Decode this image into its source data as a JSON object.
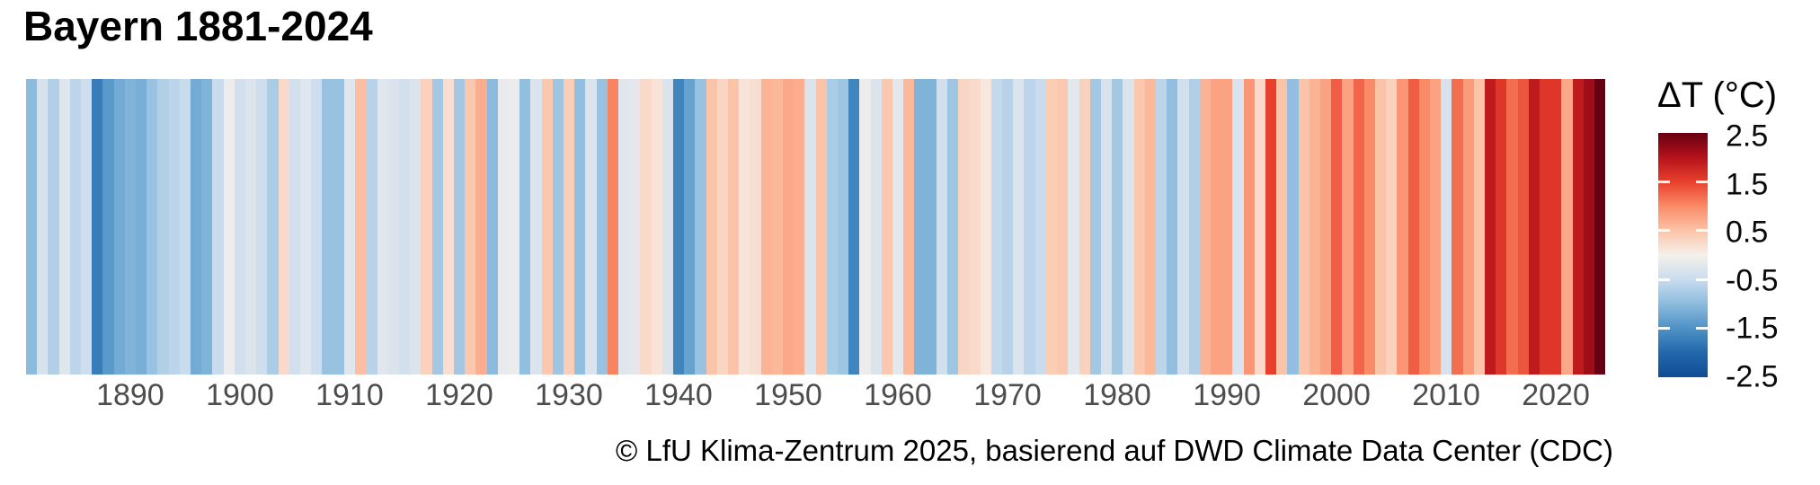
{
  "page": {
    "background": "#ffffff"
  },
  "header": {
    "title": "Bayern 1881-2024"
  },
  "footer": {
    "credit": "© LfU Klima-Zentrum 2025, basierend auf DWD Climate Data Center (CDC)"
  },
  "legend": {
    "title": "ΔT (°C)",
    "tick_labels": [
      "2.5",
      "1.5",
      "0.5",
      "-0.5",
      "-1.5",
      "-2.5"
    ],
    "interior_tick_values": [
      1.5,
      0.5,
      -0.5,
      -1.5
    ],
    "max": 2.5,
    "min": -2.5
  },
  "chart_data": {
    "type": "heatmap",
    "subtype": "warming-stripes",
    "title": "Bayern 1881-2024",
    "region": "Bayern",
    "x_start_year": 1881,
    "x_end_year": 2024,
    "x_tick_years": [
      1890,
      1900,
      1910,
      1920,
      1930,
      1940,
      1950,
      1960,
      1970,
      1980,
      1990,
      2000,
      2010,
      2020
    ],
    "value_label": "ΔT (°C)",
    "unit": "°C",
    "value_range": [
      -2.5,
      2.5
    ],
    "values": [
      -1.0,
      -0.35,
      -0.7,
      -0.25,
      -0.6,
      -0.45,
      -1.75,
      -1.4,
      -1.2,
      -1.1,
      -1.15,
      -0.9,
      -0.7,
      -0.6,
      -0.5,
      -1.2,
      -1.1,
      -0.5,
      -0.1,
      -0.4,
      -0.3,
      -0.45,
      -0.75,
      0.25,
      -0.4,
      -0.25,
      -0.45,
      -0.9,
      -0.9,
      -0.25,
      0.55,
      -0.65,
      -0.25,
      -0.3,
      -0.4,
      -0.3,
      0.35,
      -0.8,
      0.2,
      -0.8,
      0.45,
      0.7,
      -1.0,
      -0.15,
      -0.1,
      -0.95,
      -0.3,
      0.45,
      -0.85,
      0.4,
      -0.95,
      -0.3,
      -0.9,
      1.05,
      -0.25,
      -0.2,
      0.25,
      0.15,
      -0.3,
      -1.65,
      -1.3,
      -0.9,
      0.5,
      0.3,
      0.5,
      0.15,
      0.2,
      0.65,
      0.6,
      0.75,
      0.7,
      -0.3,
      0.5,
      -0.75,
      -0.85,
      -1.65,
      -0.1,
      -0.3,
      0.45,
      -0.2,
      0.6,
      -1.1,
      -1.1,
      -0.4,
      -0.85,
      0.3,
      0.25,
      0.1,
      -0.55,
      -0.65,
      -0.3,
      -0.6,
      -0.5,
      0.4,
      0.45,
      -0.2,
      0.35,
      -0.8,
      -0.35,
      -0.8,
      -0.3,
      0.45,
      0.6,
      -0.6,
      -0.95,
      -0.4,
      -0.7,
      0.65,
      0.8,
      0.8,
      -0.3,
      0.9,
      0.25,
      1.5,
      0.5,
      -0.95,
      0.5,
      0.65,
      0.8,
      1.3,
      0.8,
      1.25,
      1.0,
      0.5,
      0.35,
      0.9,
      1.3,
      1.0,
      0.8,
      -0.35,
      1.2,
      0.85,
      0.5,
      1.9,
      1.6,
      1.2,
      1.35,
      1.9,
      1.6,
      1.6,
      0.75,
      1.9,
      2.15,
      2.5
    ],
    "colormap_stops": [
      {
        "value": 2.5,
        "color": "#670012"
      },
      {
        "value": 2.0,
        "color": "#b5121b"
      },
      {
        "value": 1.5,
        "color": "#e8402c"
      },
      {
        "value": 1.0,
        "color": "#fa8b68"
      },
      {
        "value": 0.5,
        "color": "#fbc4a8"
      },
      {
        "value": 0.0,
        "color": "#f6f0ec"
      },
      {
        "value": -0.5,
        "color": "#c9dcee"
      },
      {
        "value": -1.0,
        "color": "#8cbbdd"
      },
      {
        "value": -1.5,
        "color": "#4e92c6"
      },
      {
        "value": -2.0,
        "color": "#2267ac"
      },
      {
        "value": -2.5,
        "color": "#0f4d94"
      }
    ],
    "layout": {
      "grid": false,
      "legend_position": "right",
      "stripe_gap": 0
    }
  }
}
